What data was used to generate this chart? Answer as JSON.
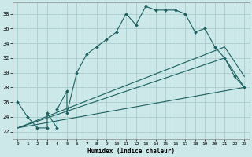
{
  "title": "",
  "xlabel": "Humidex (Indice chaleur)",
  "bg_color": "#cce8e8",
  "grid_color": "#b0d0d0",
  "line_color": "#1a6060",
  "xlim": [
    -0.5,
    23.5
  ],
  "ylim": [
    21.0,
    39.5
  ],
  "xticks": [
    0,
    1,
    2,
    3,
    4,
    5,
    6,
    7,
    8,
    9,
    10,
    11,
    12,
    13,
    14,
    15,
    16,
    17,
    18,
    19,
    20,
    21,
    22,
    23
  ],
  "yticks": [
    22,
    24,
    26,
    28,
    30,
    32,
    34,
    36,
    38
  ],
  "main_x": [
    0,
    1,
    2,
    3,
    3,
    4,
    4,
    5,
    5,
    6,
    7,
    8,
    9,
    10,
    11,
    12,
    13,
    14,
    15,
    16,
    17,
    18,
    19,
    20,
    21,
    22,
    23
  ],
  "main_y": [
    26,
    24,
    22.5,
    22.5,
    24.5,
    22.5,
    25,
    27.5,
    24.5,
    30,
    32.5,
    33.5,
    34.5,
    35.5,
    38,
    36.5,
    39,
    38.5,
    38.5,
    38.5,
    38,
    35.5,
    36,
    33.5,
    32,
    29.5,
    28
  ],
  "line1_x": [
    0,
    21,
    23
  ],
  "line1_y": [
    22.5,
    33.5,
    29.5
  ],
  "line2_x": [
    0,
    21,
    23
  ],
  "line2_y": [
    22.5,
    32.0,
    28.0
  ],
  "line3_x": [
    0,
    23
  ],
  "line3_y": [
    22.5,
    28.0
  ]
}
